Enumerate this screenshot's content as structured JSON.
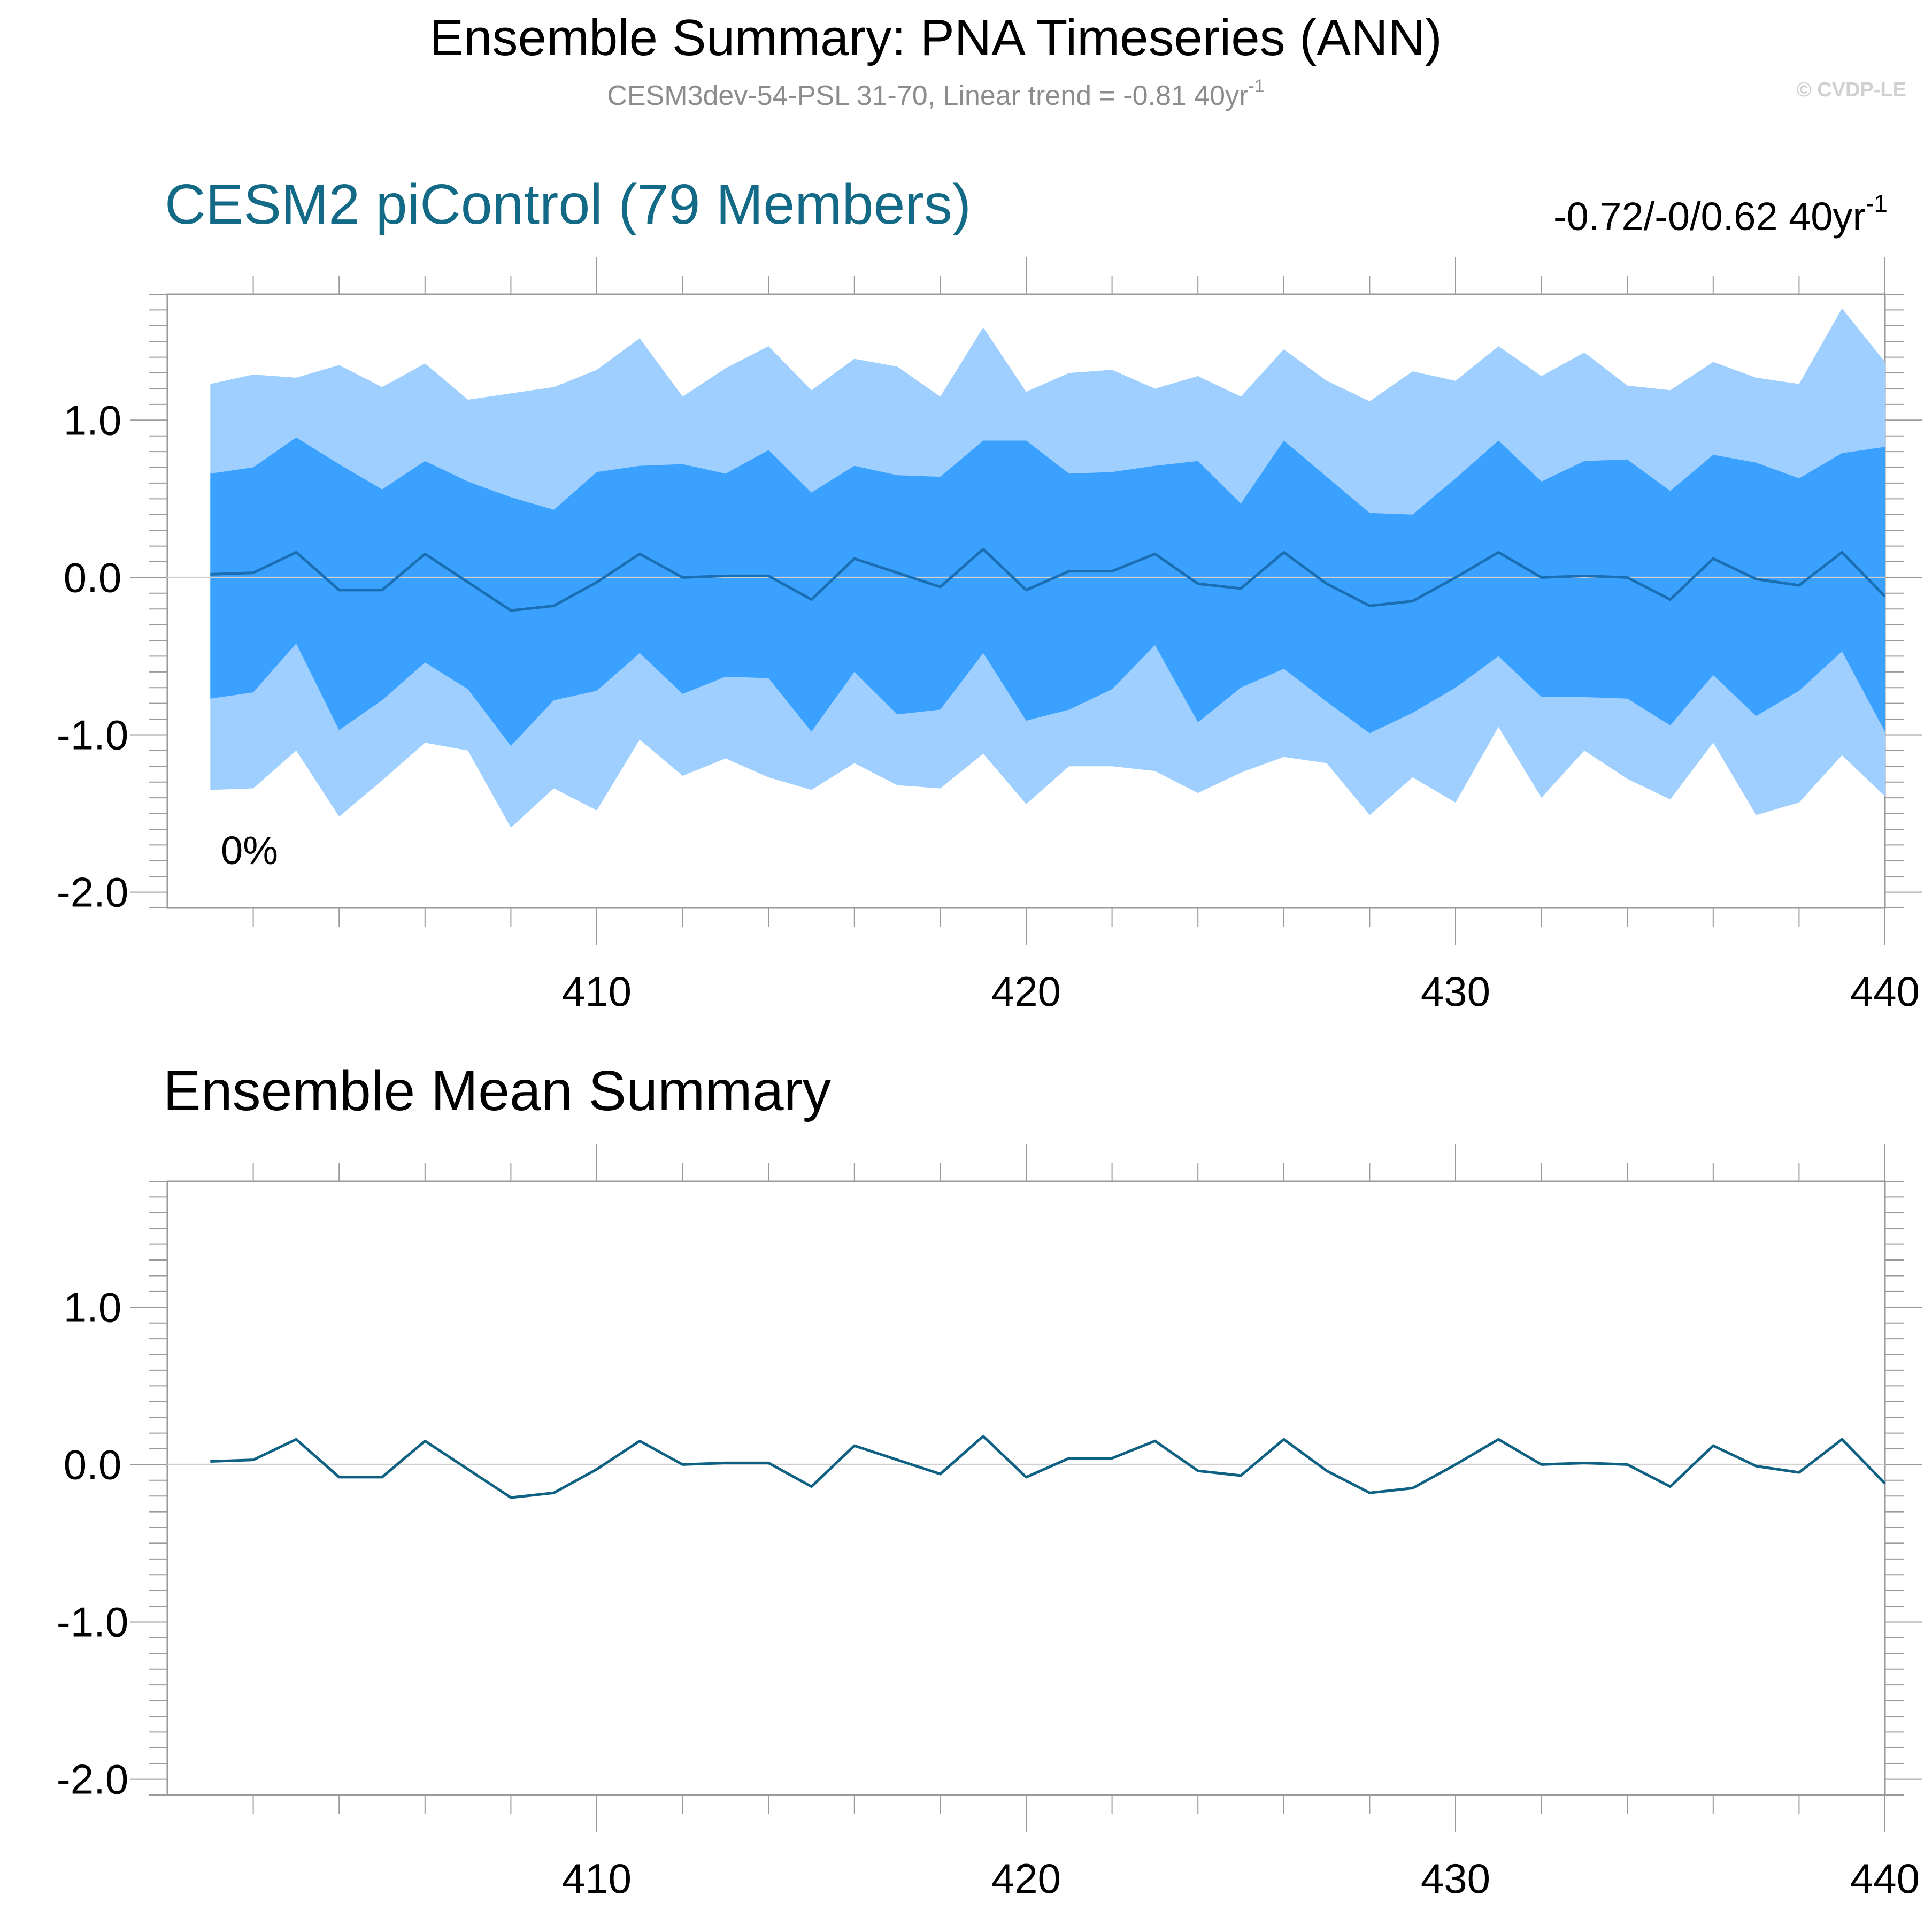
{
  "figure": {
    "title": "Ensemble Summary: PNA Timeseries (ANN)",
    "subtitle": "CESM3dev-54-PSL 31-70, Linear trend = -0.81 40yr",
    "subtitle_sup": "-1",
    "watermark": "© CVDP-LE"
  },
  "colors": {
    "outer_band": "#9ecffe",
    "inner_band": "#3ba1fe",
    "mean_line_top": "#1a6fb3",
    "mean_line_bottom": "#0f6183",
    "panel_title": "#136a87",
    "subtitle": "#8c8c8c",
    "watermark": "#d0d0d0",
    "zero_line": "#cfcfcf",
    "axis": "#9a9a9a"
  },
  "chart_data": [
    {
      "type": "area",
      "title": "CESM2 piControl (79 Members)",
      "trend_label": "-0.72/-0/0.62 40yr",
      "trend_sup": "-1",
      "annotation": "0%",
      "xlim": [
        400,
        440
      ],
      "ylim": [
        -2.1,
        1.8
      ],
      "xticks": [
        410,
        420,
        430,
        440
      ],
      "xtick_labels": [
        "410",
        "420",
        "430",
        "440"
      ],
      "yticks": [
        1.0,
        0.0,
        -1.0,
        -2.0
      ],
      "ytick_labels": [
        "1.0",
        "0.0",
        "-1.0",
        "-2.0"
      ],
      "x": [
        401,
        402,
        403,
        404,
        405,
        406,
        407,
        408,
        409,
        410,
        411,
        412,
        413,
        414,
        415,
        416,
        417,
        418,
        419,
        420,
        421,
        422,
        423,
        424,
        425,
        426,
        427,
        428,
        429,
        430,
        431,
        432,
        433,
        434,
        435,
        436,
        437,
        438,
        439,
        440
      ],
      "series": [
        {
          "role": "outer_upper",
          "values": [
            1.23,
            1.29,
            1.27,
            1.35,
            1.21,
            1.36,
            1.13,
            1.17,
            1.21,
            1.32,
            1.52,
            1.15,
            1.33,
            1.47,
            1.19,
            1.39,
            1.34,
            1.15,
            1.59,
            1.18,
            1.3,
            1.32,
            1.2,
            1.28,
            1.15,
            1.45,
            1.25,
            1.12,
            1.31,
            1.25,
            1.47,
            1.28,
            1.43,
            1.22,
            1.19,
            1.37,
            1.27,
            1.23,
            1.71,
            1.37
          ]
        },
        {
          "role": "inner_upper",
          "values": [
            0.66,
            0.7,
            0.89,
            0.72,
            0.56,
            0.74,
            0.61,
            0.51,
            0.43,
            0.67,
            0.71,
            0.72,
            0.66,
            0.81,
            0.54,
            0.71,
            0.65,
            0.64,
            0.87,
            0.87,
            0.66,
            0.67,
            0.71,
            0.74,
            0.47,
            0.87,
            0.64,
            0.41,
            0.4,
            0.63,
            0.87,
            0.61,
            0.74,
            0.75,
            0.55,
            0.78,
            0.73,
            0.63,
            0.79,
            0.83
          ]
        },
        {
          "role": "mean",
          "values": [
            0.02,
            0.03,
            0.16,
            -0.08,
            -0.08,
            0.15,
            -0.03,
            -0.21,
            -0.18,
            -0.03,
            0.15,
            0.0,
            0.01,
            0.01,
            -0.14,
            0.12,
            0.03,
            -0.06,
            0.18,
            -0.08,
            0.04,
            0.04,
            0.15,
            -0.04,
            -0.07,
            0.16,
            -0.04,
            -0.18,
            -0.15,
            0.0,
            0.16,
            0.0,
            0.01,
            0.0,
            -0.14,
            0.12,
            -0.01,
            -0.05,
            0.16,
            -0.12
          ]
        },
        {
          "role": "inner_lower",
          "values": [
            -0.77,
            -0.73,
            -0.42,
            -0.97,
            -0.78,
            -0.54,
            -0.71,
            -1.07,
            -0.78,
            -0.72,
            -0.48,
            -0.74,
            -0.63,
            -0.64,
            -0.98,
            -0.6,
            -0.87,
            -0.84,
            -0.48,
            -0.91,
            -0.84,
            -0.71,
            -0.43,
            -0.92,
            -0.7,
            -0.58,
            -0.79,
            -0.99,
            -0.86,
            -0.7,
            -0.5,
            -0.76,
            -0.76,
            -0.77,
            -0.94,
            -0.62,
            -0.88,
            -0.72,
            -0.47,
            -0.98
          ]
        },
        {
          "role": "outer_lower",
          "values": [
            -1.35,
            -1.34,
            -1.1,
            -1.52,
            -1.29,
            -1.05,
            -1.1,
            -1.59,
            -1.34,
            -1.48,
            -1.03,
            -1.26,
            -1.15,
            -1.27,
            -1.35,
            -1.18,
            -1.32,
            -1.34,
            -1.12,
            -1.44,
            -1.2,
            -1.2,
            -1.23,
            -1.37,
            -1.24,
            -1.14,
            -1.18,
            -1.51,
            -1.27,
            -1.43,
            -0.95,
            -1.4,
            -1.1,
            -1.28,
            -1.41,
            -1.05,
            -1.51,
            -1.43,
            -1.13,
            -1.39
          ]
        }
      ]
    },
    {
      "type": "line",
      "title": "Ensemble Mean Summary",
      "xlim": [
        400,
        440
      ],
      "ylim": [
        -2.1,
        1.8
      ],
      "xticks": [
        410,
        420,
        430,
        440
      ],
      "xtick_labels": [
        "410",
        "420",
        "430",
        "440"
      ],
      "yticks": [
        1.0,
        0.0,
        -1.0,
        -2.0
      ],
      "ytick_labels": [
        "1.0",
        "0.0",
        "-1.0",
        "-2.0"
      ],
      "x": [
        401,
        402,
        403,
        404,
        405,
        406,
        407,
        408,
        409,
        410,
        411,
        412,
        413,
        414,
        415,
        416,
        417,
        418,
        419,
        420,
        421,
        422,
        423,
        424,
        425,
        426,
        427,
        428,
        429,
        430,
        431,
        432,
        433,
        434,
        435,
        436,
        437,
        438,
        439,
        440
      ],
      "series": [
        {
          "values": [
            0.02,
            0.03,
            0.16,
            -0.08,
            -0.08,
            0.15,
            -0.03,
            -0.21,
            -0.18,
            -0.03,
            0.15,
            0.0,
            0.01,
            0.01,
            -0.14,
            0.12,
            0.03,
            -0.06,
            0.18,
            -0.08,
            0.04,
            0.04,
            0.15,
            -0.04,
            -0.07,
            0.16,
            -0.04,
            -0.18,
            -0.15,
            0.0,
            0.16,
            0.0,
            0.01,
            0.0,
            -0.14,
            0.12,
            -0.01,
            -0.05,
            0.16,
            -0.12
          ]
        }
      ]
    }
  ]
}
